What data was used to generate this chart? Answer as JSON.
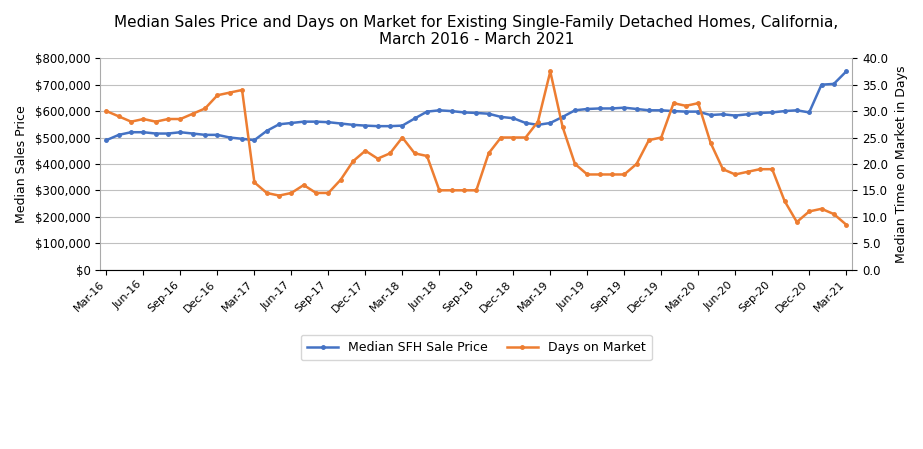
{
  "title": "Median Sales Price and Days on Market for Existing Single-Family Detached Homes, California,\nMarch 2016 - March 2021",
  "ylabel_left": "Median Sales Price",
  "ylabel_right": "Median Time on Market in Days",
  "legend_labels": [
    "Median SFH Sale Price",
    "Days on Market"
  ],
  "line1_color": "#4472C4",
  "line2_color": "#ED7D31",
  "x_labels": [
    "Mar-16",
    "Jun-16",
    "Sep-16",
    "Dec-16",
    "Mar-17",
    "Jun-17",
    "Sep-17",
    "Dec-17",
    "Mar-18",
    "Jun-18",
    "Sep-18",
    "Dec-18",
    "Mar-19",
    "Jun-19",
    "Sep-19",
    "Dec-19",
    "Mar-20",
    "Jun-20",
    "Sep-20",
    "Dec-20",
    "Mar-21"
  ],
  "sfh_price": [
    490000,
    510000,
    520000,
    520000,
    515000,
    515000,
    520000,
    515000,
    510000,
    510000,
    500000,
    495000,
    490000,
    525000,
    550000,
    555000,
    560000,
    560000,
    558000,
    553000,
    548000,
    545000,
    543000,
    543000,
    545000,
    572000,
    598000,
    603000,
    600000,
    595000,
    593000,
    590000,
    578000,
    573000,
    555000,
    548000,
    555000,
    578000,
    603000,
    608000,
    610000,
    610000,
    613000,
    608000,
    603000,
    603000,
    600000,
    598000,
    598000,
    585000,
    588000,
    583000,
    588000,
    593000,
    595000,
    600000,
    603000,
    595000,
    700000,
    703000,
    750000
  ],
  "dom": [
    30.0,
    29.0,
    28.0,
    28.5,
    28.0,
    28.5,
    28.5,
    29.5,
    30.5,
    33.0,
    33.5,
    34.0,
    16.5,
    14.5,
    14.0,
    14.5,
    16.0,
    14.5,
    14.5,
    17.0,
    20.5,
    22.5,
    21.0,
    22.0,
    25.0,
    22.0,
    21.5,
    15.0,
    15.0,
    15.0,
    15.0,
    22.0,
    25.0,
    25.0,
    25.0,
    28.0,
    37.5,
    27.0,
    20.0,
    18.0,
    18.0,
    18.0,
    18.0,
    20.0,
    24.5,
    25.0,
    31.5,
    31.0,
    31.5,
    24.0,
    19.0,
    18.0,
    18.5,
    19.0,
    19.0,
    13.0,
    9.0,
    11.0,
    11.5,
    10.5,
    8.5
  ],
  "ylim_left": [
    0,
    800000
  ],
  "ylim_right": [
    0,
    40
  ],
  "yticks_left": [
    0,
    100000,
    200000,
    300000,
    400000,
    500000,
    600000,
    700000,
    800000
  ],
  "yticks_right": [
    0.0,
    5.0,
    10.0,
    15.0,
    20.0,
    25.0,
    30.0,
    35.0,
    40.0
  ],
  "background_color": "#FFFFFF",
  "grid_color": "#C0C0C0"
}
